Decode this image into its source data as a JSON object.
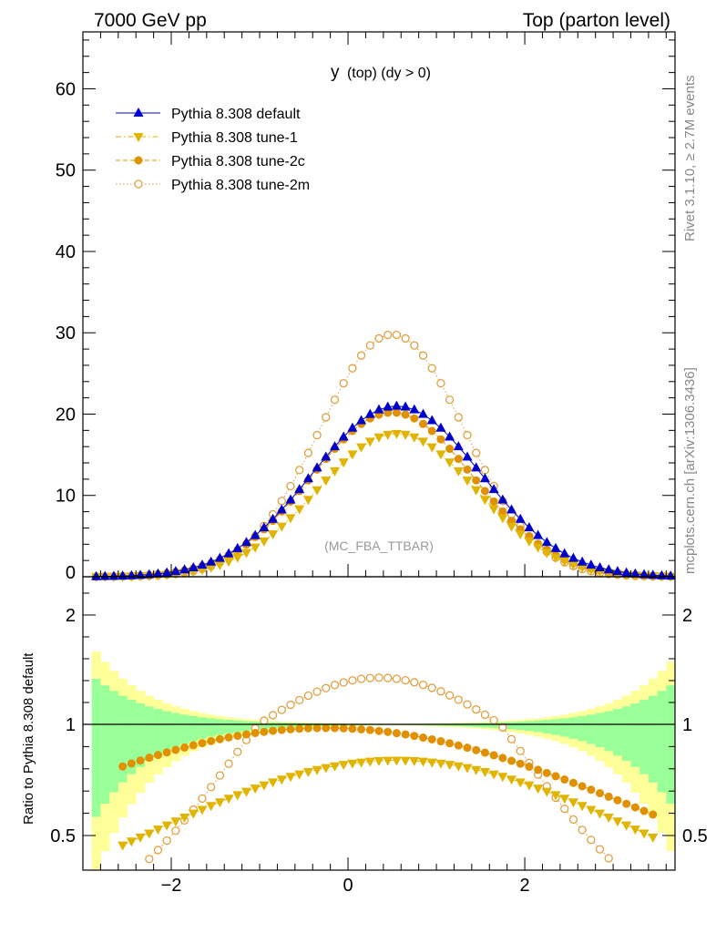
{
  "header": {
    "left": "7000 GeV pp",
    "right": "Top (parton level)"
  },
  "side_labels": {
    "rivet": "Rivet 3.1.10, ≥ 2.7M events",
    "mcplots": "mcplots.cern.ch [arXiv:1306.3436]"
  },
  "chart_data": {
    "type": "line",
    "title": "y (top) (dy > 0)",
    "title_main": "y",
    "title_sub": "(top) (dy > 0)",
    "watermark": "(MC_FBA_TTBAR)",
    "main_panel": {
      "xlim": [
        -3.0,
        3.7
      ],
      "ylim": [
        0,
        67
      ],
      "yticks": [
        0,
        10,
        20,
        30,
        40,
        50,
        60
      ],
      "ytick_labels": [
        "0",
        "10",
        "20",
        "30",
        "40",
        "50",
        "60"
      ]
    },
    "ratio_panel": {
      "ylabel": "Ratio to Pythia 8.308 default",
      "ylim": [
        0.35,
        2.3
      ],
      "yticks": [
        0.5,
        1,
        2
      ],
      "ytick_labels": [
        "0.5",
        "1",
        "2"
      ],
      "xticks": [
        -2,
        0,
        2
      ],
      "xtick_labels": [
        "−2",
        "0",
        "2"
      ]
    },
    "legend": {
      "position": "top-left"
    },
    "series": [
      {
        "name": "Pythia 8.308 default",
        "color": "#0000cc",
        "marker": "triangle-up",
        "line": "solid",
        "peak": 21.0,
        "mu": 0.55,
        "sigma": 0.95
      },
      {
        "name": "Pythia 8.308 tune-1",
        "color": "#e0b400",
        "marker": "triangle-down",
        "line": "dashdot",
        "peak": 17.6,
        "mu": 0.55,
        "sigma": 0.9
      },
      {
        "name": "Pythia 8.308 tune-2c",
        "color": "#e09000",
        "marker": "circle",
        "line": "dashed",
        "peak": 20.2,
        "mu": 0.5,
        "sigma": 0.92
      },
      {
        "name": "Pythia 8.308 tune-2m",
        "color": "#e0a040",
        "marker": "open-circle",
        "line": "dotted",
        "peak": 29.8,
        "mu": 0.5,
        "sigma": 0.82
      }
    ],
    "x_binning": {
      "start": -2.85,
      "step": 0.1,
      "count": 66
    },
    "ratio_band_colors": {
      "inner": "#99ff99",
      "outer": "#ffff99"
    }
  }
}
